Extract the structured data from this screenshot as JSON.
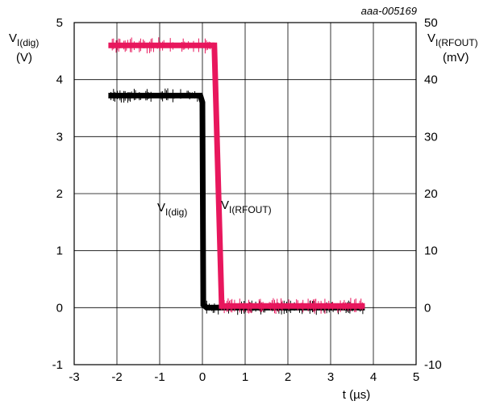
{
  "chart_data": {
    "type": "line",
    "ref_code": "aaa-005169",
    "x_label": "t (µs)",
    "x_ticks": [
      -3,
      -2,
      -1,
      0,
      1,
      2,
      3,
      4,
      5
    ],
    "xlim": [
      -3,
      5
    ],
    "y_left": {
      "label_main": "V",
      "label_sub": "I(dig)",
      "unit": "(V)",
      "ticks": [
        -1,
        0,
        1,
        2,
        3,
        4,
        5
      ],
      "lim": [
        -1,
        5
      ]
    },
    "y_right": {
      "label_main": "V",
      "label_sub": "I(RFOUT)",
      "unit": "(mV)",
      "ticks": [
        -10,
        0,
        10,
        20,
        30,
        40,
        50
      ],
      "lim": [
        -10,
        50
      ]
    },
    "grid": true,
    "series": [
      {
        "name_main": "V",
        "name_sub": "I(dig)",
        "axis": "left",
        "color": "#000000",
        "x": [
          -2.2,
          -0.05,
          0.0,
          0.02,
          0.1,
          3.8
        ],
        "y": [
          3.72,
          3.72,
          3.6,
          0.05,
          0.0,
          0.0
        ]
      },
      {
        "name_main": "V",
        "name_sub": "I(RFOUT)",
        "axis": "right",
        "color": "#e8175d",
        "x": [
          -2.2,
          0.28,
          0.45,
          3.8
        ],
        "y": [
          46.0,
          46.0,
          0.3,
          0.3
        ]
      }
    ]
  }
}
